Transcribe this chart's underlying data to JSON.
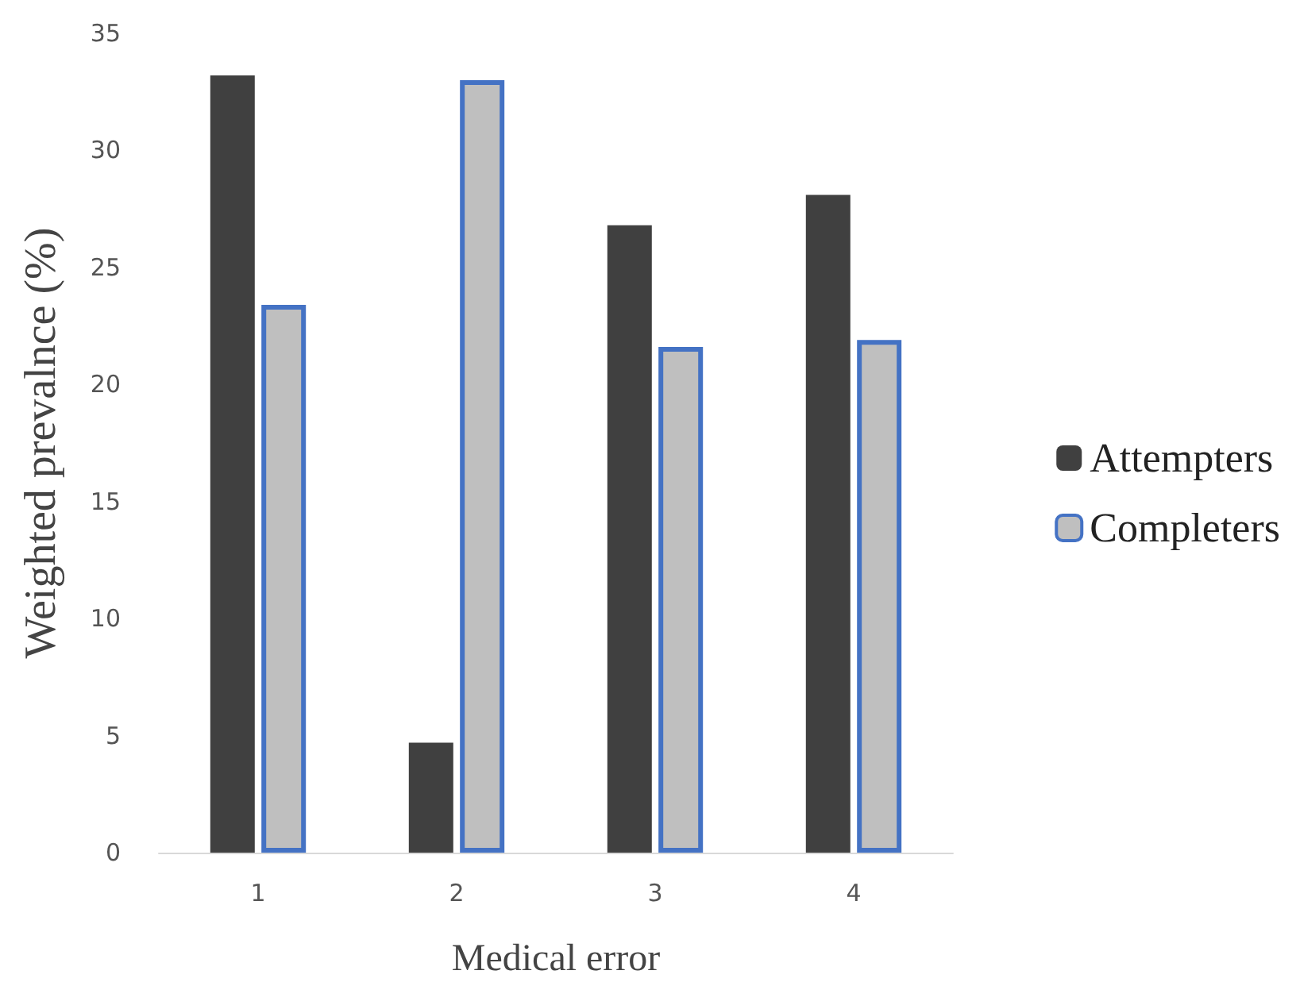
{
  "chart_data": {
    "type": "bar",
    "xlabel": "Medical error",
    "ylabel": "Weighted prevalnce (%)",
    "categories": [
      "1",
      "2",
      "3",
      "4"
    ],
    "series": [
      {
        "name": "Attempters",
        "color": "#404040",
        "values": [
          33.2,
          4.7,
          26.8,
          28.1
        ]
      },
      {
        "name": "Completers",
        "color": "#bfbfbf",
        "values": [
          23.4,
          33.0,
          21.6,
          21.9
        ]
      }
    ],
    "ylim": [
      0,
      35
    ],
    "yticks": [
      0,
      5,
      10,
      15,
      20,
      25,
      30,
      35
    ],
    "grid": false,
    "legend": "right"
  }
}
